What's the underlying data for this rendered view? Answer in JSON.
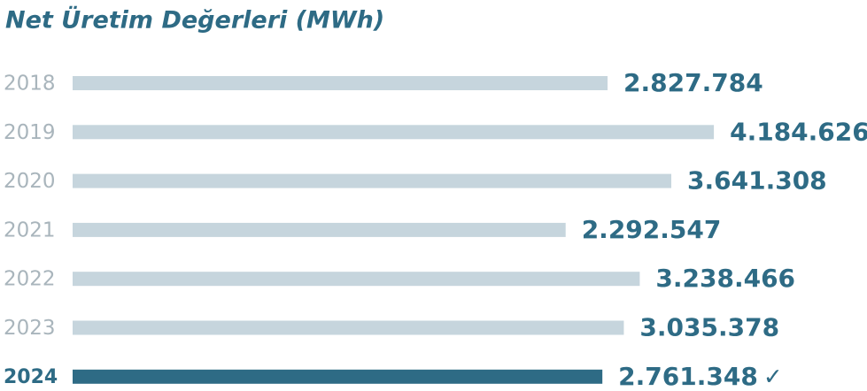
{
  "chart_data": {
    "type": "hbar",
    "title": "Net Üretim Değerleri (MWh)",
    "categories": [
      "2018",
      "2019",
      "2020",
      "2021",
      "2022",
      "2023",
      "2024"
    ],
    "values": [
      2827784,
      4184626,
      3641308,
      2292547,
      3238466,
      3035378,
      2761348
    ],
    "value_labels": [
      "2.827.784",
      "4.184.626",
      "3.641.308",
      "2.292.547",
      "3.238.466",
      "3.035.378",
      "2.761.348"
    ],
    "colors": [
      "#c6d5dd",
      "#c6d5dd",
      "#c6d5dd",
      "#c6d5dd",
      "#c6d5dd",
      "#c6d5dd",
      "#2e6b85"
    ],
    "highlight": 6,
    "annotation": "✓",
    "xlim": [
      -4000000,
      4500000
    ]
  }
}
